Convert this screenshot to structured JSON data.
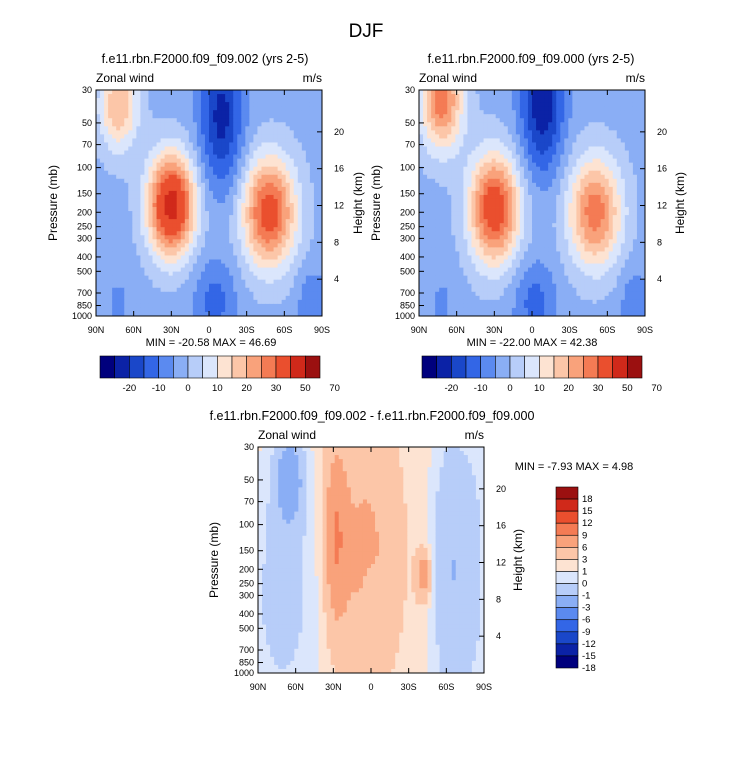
{
  "page_title": "DJF",
  "colors": {
    "main_scale": [
      "#00007d",
      "#0b22a6",
      "#1a47c9",
      "#3366e6",
      "#5b8af0",
      "#8aaef5",
      "#b7cdf9",
      "#dbe6fc",
      "#fde3d2",
      "#fcc6a8",
      "#f9a27b",
      "#f47b54",
      "#ea4f2e",
      "#d0291a",
      "#9b1010"
    ],
    "diff_scale": [
      "#00007d",
      "#0b22a6",
      "#1a47c9",
      "#3366e6",
      "#5b8af0",
      "#8aaef5",
      "#b7cdf9",
      "#dbe6fc",
      "#fde3d2",
      "#fcc6a8",
      "#f9a27b",
      "#f47b54",
      "#ea4f2e",
      "#d0291a",
      "#9b1010"
    ]
  },
  "chart_data": [
    {
      "type": "heatmap",
      "id": "panel-a",
      "title": "f.e11.rbn.F2000.f09_f09.002 (yrs 2-5)",
      "left_label": "Zonal wind",
      "right_label": "m/s",
      "ylabel": "Pressure (mb)",
      "y2label": "Height (km)",
      "xlabel": "",
      "x_ticks": [
        "90N",
        "60N",
        "30N",
        "0",
        "30S",
        "60S",
        "90S"
      ],
      "y_ticks": [
        "30",
        "50",
        "70",
        "100",
        "150",
        "200",
        "250",
        "300",
        "400",
        "500",
        "700",
        "850",
        "1000"
      ],
      "y2_ticks": [
        "20",
        "16",
        "12",
        "8",
        "4"
      ],
      "xlim": [
        90,
        -90
      ],
      "ylim": [
        1000,
        30
      ],
      "stats": "MIN = -20.58  MAX =  46.69",
      "min": -20.58,
      "max": 46.69,
      "colorbar_labels": [
        "-20",
        "-10",
        "0",
        "10",
        "20",
        "30",
        "50",
        "70"
      ],
      "features": [
        {
          "lat": 30,
          "p": 180,
          "value": 46,
          "sx": 13,
          "sy": 0.55
        },
        {
          "lat": 72,
          "p": 38,
          "value": 22,
          "sx": 11,
          "sy": 0.5
        },
        {
          "lat": -48,
          "p": 200,
          "value": 36,
          "sx": 15,
          "sy": 0.6
        },
        {
          "lat": -10,
          "p": 45,
          "value": -20,
          "sx": 12,
          "sy": 0.8
        },
        {
          "lat": -5,
          "p": 800,
          "value": -10,
          "sx": 12,
          "sy": 0.45
        },
        {
          "lat": -82,
          "p": 850,
          "value": -8,
          "sx": 8,
          "sy": 0.4
        },
        {
          "lat": 72,
          "p": 850,
          "value": -4,
          "sx": 8,
          "sy": 0.4
        }
      ],
      "background": -2
    },
    {
      "type": "heatmap",
      "id": "panel-b",
      "title": "f.e11.rbn.F2000.f09_f09.000 (yrs 2-5)",
      "left_label": "Zonal wind",
      "right_label": "m/s",
      "ylabel": "Pressure (mb)",
      "y2label": "Height (km)",
      "xlabel": "",
      "x_ticks": [
        "90N",
        "60N",
        "30N",
        "0",
        "30S",
        "60S",
        "90S"
      ],
      "y_ticks": [
        "30",
        "50",
        "70",
        "100",
        "150",
        "200",
        "250",
        "300",
        "400",
        "500",
        "700",
        "850",
        "1000"
      ],
      "y2_ticks": [
        "20",
        "16",
        "12",
        "8",
        "4"
      ],
      "xlim": [
        90,
        -90
      ],
      "ylim": [
        1000,
        30
      ],
      "stats": "MIN = -22.00  MAX =  42.38",
      "min": -22.0,
      "max": 42.38,
      "colorbar_labels": [
        "-20",
        "-10",
        "0",
        "10",
        "20",
        "30",
        "50",
        "70"
      ],
      "features": [
        {
          "lat": 30,
          "p": 190,
          "value": 38,
          "sx": 14,
          "sy": 0.6
        },
        {
          "lat": 72,
          "p": 35,
          "value": 30,
          "sx": 12,
          "sy": 0.55
        },
        {
          "lat": -50,
          "p": 200,
          "value": 30,
          "sx": 15,
          "sy": 0.6
        },
        {
          "lat": -8,
          "p": 38,
          "value": -22,
          "sx": 12,
          "sy": 0.75
        },
        {
          "lat": -2,
          "p": 800,
          "value": -10,
          "sx": 12,
          "sy": 0.45
        },
        {
          "lat": -82,
          "p": 850,
          "value": -8,
          "sx": 8,
          "sy": 0.4
        },
        {
          "lat": 72,
          "p": 850,
          "value": -4,
          "sx": 8,
          "sy": 0.4
        }
      ],
      "background": -2
    },
    {
      "type": "heatmap",
      "id": "panel-c",
      "title": "f.e11.rbn.F2000.f09_f09.002 - f.e11.rbn.F2000.f09_f09.000",
      "left_label": "Zonal wind",
      "right_label": "m/s",
      "ylabel": "Pressure (mb)",
      "y2label": "Height (km)",
      "xlabel": "",
      "x_ticks": [
        "90N",
        "60N",
        "30N",
        "0",
        "30S",
        "60S",
        "90S"
      ],
      "y_ticks": [
        "30",
        "50",
        "70",
        "100",
        "150",
        "200",
        "250",
        "300",
        "400",
        "500",
        "700",
        "850",
        "1000"
      ],
      "y2_ticks": [
        "20",
        "16",
        "12",
        "8",
        "4"
      ],
      "xlim": [
        90,
        -90
      ],
      "ylim": [
        1000,
        30
      ],
      "stats": "MIN = -7.93  MAX =   4.98",
      "min": -7.93,
      "max": 4.98,
      "colorbar_labels": [
        "18",
        "15",
        "12",
        "9",
        "6",
        "3",
        "1",
        "0",
        "-1",
        "-3",
        "-6",
        "-9",
        "-12",
        "-15",
        "-18"
      ],
      "features": [
        {
          "lat": 28,
          "p": 120,
          "value": 5,
          "sx": 6,
          "sy": 0.9
        },
        {
          "lat": 5,
          "p": 150,
          "value": 3,
          "sx": 18,
          "sy": 1.3
        },
        {
          "lat": -42,
          "p": 220,
          "value": 4.5,
          "sx": 4,
          "sy": 0.25
        },
        {
          "lat": 65,
          "p": 50,
          "value": -5,
          "sx": 8,
          "sy": 0.5
        },
        {
          "lat": 70,
          "p": 300,
          "value": -2,
          "sx": 22,
          "sy": 1.5
        },
        {
          "lat": -62,
          "p": 200,
          "value": -3,
          "sx": 10,
          "sy": 1.5
        },
        {
          "lat": -80,
          "p": 200,
          "value": -2,
          "sx": 10,
          "sy": 1.5
        },
        {
          "lat": 0,
          "p": 350,
          "value": -1.5,
          "sx": 4,
          "sy": 0.35
        }
      ],
      "background": 0.5
    }
  ]
}
